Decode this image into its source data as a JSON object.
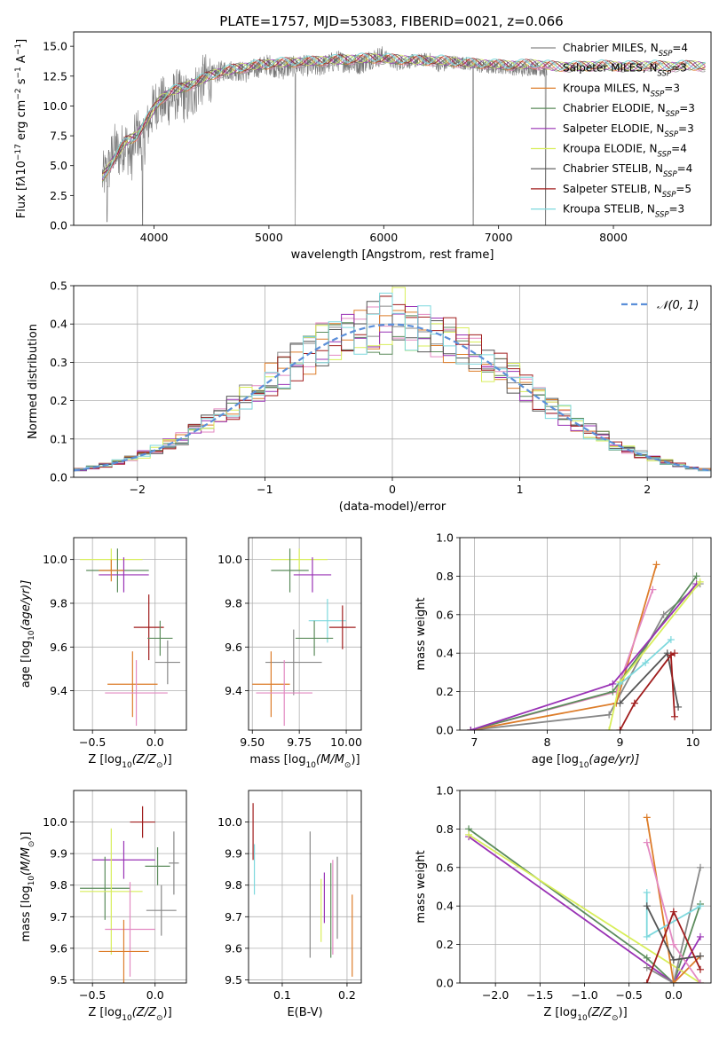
{
  "title": "PLATE=1757, MJD=53083, FIBERID=0021, z=0.066",
  "legend_names": [
    "Chabrier MILES, N",
    "Salpeter MILES, N",
    "Kroupa MILES, N",
    "Chabrier ELODIE, N",
    "Salpeter ELODIE, N",
    "Kroupa ELODIE, N",
    "Chabrier STELIB, N",
    "Salpeter STELIB, N",
    "Kroupa STELIB, N"
  ],
  "legend_sub": "SSP",
  "legend_nssp": [
    "=4",
    "=3",
    "=3",
    "=3",
    "=3",
    "=4",
    "=4",
    "=5",
    "=3"
  ],
  "colors": [
    "#7f7f7f",
    "#e377c2",
    "#ff7f0e",
    "#2ca02c",
    "#9467bd",
    "#dbdb8d",
    "#8c564b",
    "#d62728",
    "#9edae5"
  ],
  "plot_colors": [
    "#888888",
    "#e38ac2",
    "#dd7d2a",
    "#5c8c5c",
    "#9932b5",
    "#d8ee5a",
    "#555555",
    "#a01c1c",
    "#7dd8dd"
  ],
  "chart_data": [
    {
      "id": "spectrum",
      "type": "line",
      "xlabel": "wavelength [Angstrom, rest frame]",
      "ylabel_parts": [
        "Flux [f",
        "λ",
        "10",
        "−17",
        " erg cm",
        "−2",
        " s",
        "−1",
        " A",
        "−1",
        "]"
      ],
      "xlim": [
        3300,
        8850
      ],
      "ylim": [
        0,
        16.2
      ],
      "xticks": [
        4000,
        5000,
        6000,
        7000,
        8000
      ],
      "yticks": [
        0.0,
        2.5,
        5.0,
        7.5,
        10.0,
        12.5,
        15.0
      ],
      "ytick_labels": [
        "0.0",
        "2.5",
        "5.0",
        "7.5",
        "10.0",
        "12.5",
        "15.0"
      ],
      "observed": {
        "x": [
          3550,
          3600,
          3650,
          3700,
          3750,
          3800,
          3850,
          3900,
          3950,
          4000,
          4050,
          4100,
          4200,
          4300,
          4400,
          4500,
          4600,
          4700,
          4800,
          4900,
          5000,
          5100,
          5200,
          5300,
          5400,
          5500,
          5600,
          5700,
          5800,
          5900,
          6000,
          6100,
          6200,
          6300,
          6400,
          6500,
          6600,
          6700,
          6800,
          6900,
          7000,
          7100,
          7200,
          7300,
          7400
        ],
        "y": [
          4.0,
          4.5,
          6.5,
          6.0,
          7.0,
          5.5,
          8.0,
          6.5,
          8.5,
          10.0,
          10.5,
          10.2,
          11.0,
          10.5,
          12.0,
          12.5,
          13.0,
          13.0,
          12.8,
          13.2,
          13.5,
          13.0,
          13.3,
          13.4,
          13.2,
          13.5,
          13.8,
          13.6,
          13.5,
          14.0,
          14.2,
          13.5,
          13.7,
          13.8,
          13.9,
          13.3,
          13.7,
          13.6,
          13.4,
          13.2,
          13.3,
          13.2,
          13.0,
          13.2,
          13.0
        ],
        "dips": [
          [
            3590,
            0.3
          ],
          [
            3900,
            0.0
          ],
          [
            5230,
            0.0
          ],
          [
            6780,
            0.0
          ],
          [
            7410,
            0.0
          ]
        ]
      },
      "model": {
        "x": [
          3550,
          3650,
          3750,
          3850,
          3950,
          4050,
          4150,
          4300,
          4500,
          4700,
          4900,
          5100,
          5300,
          5500,
          5700,
          5900,
          6100,
          6300,
          6500,
          6700,
          6900,
          7100,
          7300,
          7500,
          7700,
          7900,
          8100,
          8300,
          8500,
          8700,
          8800
        ],
        "y": [
          4.0,
          5.5,
          7.0,
          7.5,
          9.0,
          10.5,
          11.2,
          11.7,
          12.6,
          13.1,
          13.4,
          13.6,
          13.7,
          13.8,
          13.9,
          14.0,
          13.9,
          13.8,
          13.8,
          13.6,
          13.5,
          13.4,
          13.5,
          13.3,
          13.3,
          13.4,
          13.3,
          13.4,
          13.3,
          13.4,
          13.3
        ]
      }
    },
    {
      "id": "residuals",
      "type": "bar",
      "xlabel": "(data-model)/error",
      "ylabel": "Normed distribution",
      "xlim": [
        -2.5,
        2.5
      ],
      "ylim": [
        0,
        0.5
      ],
      "xticks": [
        -2,
        -1,
        0,
        1,
        2
      ],
      "xtick_labels": [
        "−2",
        "−1",
        "0",
        "1",
        "2"
      ],
      "yticks": [
        0.0,
        0.1,
        0.2,
        0.3,
        0.4,
        0.5
      ],
      "ytick_labels": [
        "0.0",
        "0.1",
        "0.2",
        "0.3",
        "0.4",
        "0.5"
      ],
      "bin_width": 0.1,
      "curve_label": "𝒩(0, 1)",
      "curve_color": "#5b8fd9"
    },
    {
      "id": "age-vs-Z",
      "type": "scatter",
      "xlabel_parts": [
        "Z [log",
        "10",
        "(Z/Z",
        "⊙",
        ")]"
      ],
      "ylabel_parts": [
        "age  [log",
        "10",
        "(age/yr)]"
      ],
      "xlim": [
        -0.65,
        0.25
      ],
      "ylim": [
        9.22,
        10.1
      ],
      "xticks": [
        -0.5,
        0.0
      ],
      "xtick_labels": [
        "−0.5",
        "0.0"
      ],
      "yticks": [
        9.4,
        9.6,
        9.8,
        10.0
      ],
      "ytick_labels": [
        "9.4",
        "9.6",
        "9.8",
        "10.0"
      ],
      "points": [
        {
          "x": -0.35,
          "xerr": 0.25,
          "y": 10.0,
          "yerr": 0.05,
          "c": 5
        },
        {
          "x": -0.3,
          "xerr": 0.25,
          "y": 9.95,
          "yerr": 0.1,
          "c": 3
        },
        {
          "x": -0.25,
          "xerr": 0.2,
          "y": 9.93,
          "yerr": 0.08,
          "c": 4
        },
        {
          "x": -0.35,
          "xerr": 0.1,
          "y": 9.95,
          "yerr": 0.05,
          "c": 2
        },
        {
          "x": 0.1,
          "xerr": 0.1,
          "y": 9.53,
          "yerr": 0.1,
          "c": 0
        },
        {
          "x": -0.05,
          "xerr": 0.12,
          "y": 9.69,
          "yerr": 0.15,
          "c": 7
        },
        {
          "x": 0.04,
          "xerr": 0.1,
          "y": 9.64,
          "yerr": 0.08,
          "c": 3
        },
        {
          "x": -0.18,
          "xerr": 0.2,
          "y": 9.43,
          "yerr": 0.15,
          "c": 2
        },
        {
          "x": -0.15,
          "xerr": 0.25,
          "y": 9.39,
          "yerr": 0.15,
          "c": 1
        }
      ]
    },
    {
      "id": "age-vs-mass",
      "type": "scatter",
      "xlabel_parts": [
        "mass [log",
        "10",
        "(M/M",
        "⊙",
        ")]"
      ],
      "ylabel_parts": [],
      "xlim": [
        9.48,
        10.08
      ],
      "ylim": [
        9.22,
        10.1
      ],
      "xticks": [
        9.5,
        9.75,
        10.0
      ],
      "xtick_labels": [
        "9.50",
        "9.75",
        "10.00"
      ],
      "yticks": [
        9.4,
        9.6,
        9.8,
        10.0
      ],
      "ytick_labels": [
        "9.4",
        "9.6",
        "9.8",
        "10.0"
      ],
      "points": [
        {
          "x": 9.75,
          "xerr": 0.15,
          "y": 10.0,
          "yerr": 0.05,
          "c": 5
        },
        {
          "x": 9.7,
          "xerr": 0.1,
          "y": 9.95,
          "yerr": 0.1,
          "c": 3
        },
        {
          "x": 9.82,
          "xerr": 0.1,
          "y": 9.93,
          "yerr": 0.08,
          "c": 4
        },
        {
          "x": 9.9,
          "xerr": 0.1,
          "y": 9.72,
          "yerr": 0.1,
          "c": 8
        },
        {
          "x": 9.83,
          "xerr": 0.1,
          "y": 9.64,
          "yerr": 0.08,
          "c": 3
        },
        {
          "x": 9.98,
          "xerr": 0.07,
          "y": 9.69,
          "yerr": 0.1,
          "c": 7
        },
        {
          "x": 9.72,
          "xerr": 0.15,
          "y": 9.53,
          "yerr": 0.15,
          "c": 0
        },
        {
          "x": 9.6,
          "xerr": 0.1,
          "y": 9.43,
          "yerr": 0.15,
          "c": 2
        },
        {
          "x": 9.67,
          "xerr": 0.15,
          "y": 9.39,
          "yerr": 0.15,
          "c": 1
        }
      ]
    },
    {
      "id": "mass-weight-vs-age",
      "type": "line",
      "xlabel_parts": [
        "age  [log",
        "10",
        "(age/yr)]"
      ],
      "ylabel": "mass weight",
      "xlim": [
        6.8,
        10.25
      ],
      "ylim": [
        0,
        1.0
      ],
      "xticks": [
        7,
        8,
        9,
        10
      ],
      "xtick_labels": [
        "7",
        "8",
        "9",
        "10"
      ],
      "yticks": [
        0.0,
        0.2,
        0.4,
        0.6,
        0.8,
        1.0
      ],
      "ytick_labels": [
        "0.0",
        "0.2",
        "0.4",
        "0.6",
        "0.8",
        "1.0"
      ],
      "series": [
        {
          "c": 0,
          "x": [
            6.95,
            8.85,
            9.6,
            10.1
          ],
          "y": [
            0.0,
            0.08,
            0.6,
            0.76
          ]
        },
        {
          "c": 2,
          "x": [
            6.95,
            8.95,
            9.5
          ],
          "y": [
            0.0,
            0.14,
            0.86
          ]
        },
        {
          "c": 1,
          "x": [
            6.95,
            8.95,
            9.45
          ],
          "y": [
            0.0,
            0.2,
            0.73
          ]
        },
        {
          "c": 3,
          "x": [
            6.95,
            8.9,
            10.05
          ],
          "y": [
            0.0,
            0.2,
            0.8
          ]
        },
        {
          "c": 4,
          "x": [
            6.95,
            8.9,
            10.05
          ],
          "y": [
            0.0,
            0.24,
            0.76
          ]
        },
        {
          "c": 5,
          "x": [
            8.85,
            9.0,
            10.1
          ],
          "y": [
            0.0,
            0.25,
            0.77
          ]
        },
        {
          "c": 8,
          "x": [
            9.0,
            9.35,
            9.7
          ],
          "y": [
            0.24,
            0.35,
            0.47
          ]
        },
        {
          "c": 6,
          "x": [
            9.0,
            9.65,
            9.8
          ],
          "y": [
            0.14,
            0.4,
            0.12
          ]
        },
        {
          "c": 7,
          "x": [
            9.0,
            9.2,
            9.7,
            9.75,
            9.7,
            9.75
          ],
          "y": [
            0.0,
            0.14,
            0.39,
            0.07,
            0.39,
            0.4
          ]
        }
      ]
    },
    {
      "id": "mass-vs-Z",
      "type": "scatter",
      "xlabel_parts": [
        "Z [log",
        "10",
        "(Z/Z",
        "⊙",
        ")]"
      ],
      "ylabel_parts": [
        "mass [log",
        "10",
        "(M/M",
        "⊙",
        ")]"
      ],
      "xlim": [
        -0.65,
        0.25
      ],
      "ylim": [
        9.49,
        10.1
      ],
      "xticks": [
        -0.5,
        0.0
      ],
      "xtick_labels": [
        "−0.5",
        "0.0"
      ],
      "yticks": [
        9.5,
        9.6,
        9.7,
        9.8,
        9.9,
        10.0
      ],
      "ytick_labels": [
        "9.5",
        "9.6",
        "9.7",
        "9.8",
        "9.9",
        "10.0"
      ],
      "points": [
        {
          "x": -0.1,
          "xerr": 0.1,
          "y": 10.0,
          "yerr": 0.05,
          "c": 7
        },
        {
          "x": -0.25,
          "xerr": 0.25,
          "y": 9.88,
          "yerr": 0.06,
          "c": 4
        },
        {
          "x": 0.02,
          "xerr": 0.1,
          "y": 9.86,
          "yerr": 0.06,
          "c": 3
        },
        {
          "x": 0.15,
          "xerr": 0.04,
          "y": 9.87,
          "yerr": 0.1,
          "c": 0
        },
        {
          "x": -0.4,
          "xerr": 0.2,
          "y": 9.79,
          "yerr": 0.1,
          "c": 3
        },
        {
          "x": -0.35,
          "xerr": 0.25,
          "y": 9.78,
          "yerr": 0.2,
          "c": 5
        },
        {
          "x": 0.05,
          "xerr": 0.12,
          "y": 9.72,
          "yerr": 0.08,
          "c": 0
        },
        {
          "x": -0.2,
          "xerr": 0.2,
          "y": 9.66,
          "yerr": 0.15,
          "c": 1
        },
        {
          "x": -0.25,
          "xerr": 0.2,
          "y": 9.59,
          "yerr": 0.1,
          "c": 2
        }
      ]
    },
    {
      "id": "mass-vs-EBV",
      "type": "scatter",
      "xlabel": "E(B-V)",
      "ylabel_parts": [],
      "xlim": [
        0.048,
        0.222
      ],
      "ylim": [
        9.49,
        10.1
      ],
      "xticks": [
        0.1,
        0.2
      ],
      "xtick_labels": [
        "0.1",
        "0.2"
      ],
      "yticks": [
        9.5,
        9.6,
        9.7,
        9.8,
        9.9,
        10.0
      ],
      "ytick_labels": [
        "9.5",
        "9.6",
        "9.7",
        "9.8",
        "9.9",
        "10.0"
      ],
      "points": [
        {
          "x": 0.055,
          "xerr": 0,
          "y": 9.97,
          "yerr": 0.09,
          "c": 7
        },
        {
          "x": 0.057,
          "xerr": 0,
          "y": 9.85,
          "yerr": 0.08,
          "c": 8
        },
        {
          "x": 0.143,
          "xerr": 0,
          "y": 9.77,
          "yerr": 0.2,
          "c": 0
        },
        {
          "x": 0.16,
          "xerr": 0,
          "y": 9.72,
          "yerr": 0.1,
          "c": 5
        },
        {
          "x": 0.165,
          "xerr": 0,
          "y": 9.76,
          "yerr": 0.08,
          "c": 4
        },
        {
          "x": 0.175,
          "xerr": 0,
          "y": 9.72,
          "yerr": 0.15,
          "c": 3
        },
        {
          "x": 0.178,
          "xerr": 0,
          "y": 9.73,
          "yerr": 0.15,
          "c": 1
        },
        {
          "x": 0.185,
          "xerr": 0,
          "y": 9.76,
          "yerr": 0.13,
          "c": 0
        },
        {
          "x": 0.208,
          "xerr": 0,
          "y": 9.64,
          "yerr": 0.13,
          "c": 2
        }
      ]
    },
    {
      "id": "mass-weight-vs-Z",
      "type": "line",
      "xlabel_parts": [
        "Z [log",
        "10",
        "(Z/Z",
        "⊙",
        ")]"
      ],
      "ylabel": "mass weight",
      "xlim": [
        -2.4,
        0.42
      ],
      "ylim": [
        0,
        1.0
      ],
      "xticks": [
        -2.0,
        -1.5,
        -1.0,
        -0.5,
        0.0
      ],
      "xtick_labels": [
        "−2.0",
        "−1.5",
        "−1.0",
        "−0.5",
        "0.0"
      ],
      "yticks": [
        0.0,
        0.2,
        0.4,
        0.6,
        0.8,
        1.0
      ],
      "ytick_labels": [
        "0.0",
        "0.2",
        "0.4",
        "0.6",
        "0.8",
        "1.0"
      ],
      "series": [
        {
          "c": 3,
          "x": [
            -2.3,
            -0.3,
            0.0,
            0.3
          ],
          "y": [
            0.8,
            0.13,
            0.0,
            0.41
          ]
        },
        {
          "c": 4,
          "x": [
            -2.3,
            0.0,
            0.3
          ],
          "y": [
            0.76,
            0.0,
            0.24
          ]
        },
        {
          "c": 5,
          "x": [
            -2.3,
            0.3
          ],
          "y": [
            0.77,
            0.0
          ]
        },
        {
          "c": 0,
          "x": [
            -0.3,
            0.0,
            0.3,
            0.0,
            0.3
          ],
          "y": [
            0.08,
            0.0,
            0.6,
            0.0,
            0.0
          ]
        },
        {
          "c": 2,
          "x": [
            -0.3,
            0.0,
            0.3
          ],
          "y": [
            0.86,
            0.0,
            0.14
          ]
        },
        {
          "c": 1,
          "x": [
            -0.3,
            0.0,
            0.3
          ],
          "y": [
            0.73,
            0.2,
            0.0
          ]
        },
        {
          "c": 8,
          "x": [
            -0.3,
            -0.3,
            0.3
          ],
          "y": [
            0.47,
            0.24,
            0.4
          ]
        },
        {
          "c": 6,
          "x": [
            -0.3,
            0.0,
            0.3
          ],
          "y": [
            0.4,
            0.12,
            0.14
          ]
        },
        {
          "c": 7,
          "x": [
            -0.3,
            0.0,
            0.3
          ],
          "y": [
            0.0,
            0.37,
            0.07
          ]
        }
      ]
    }
  ]
}
